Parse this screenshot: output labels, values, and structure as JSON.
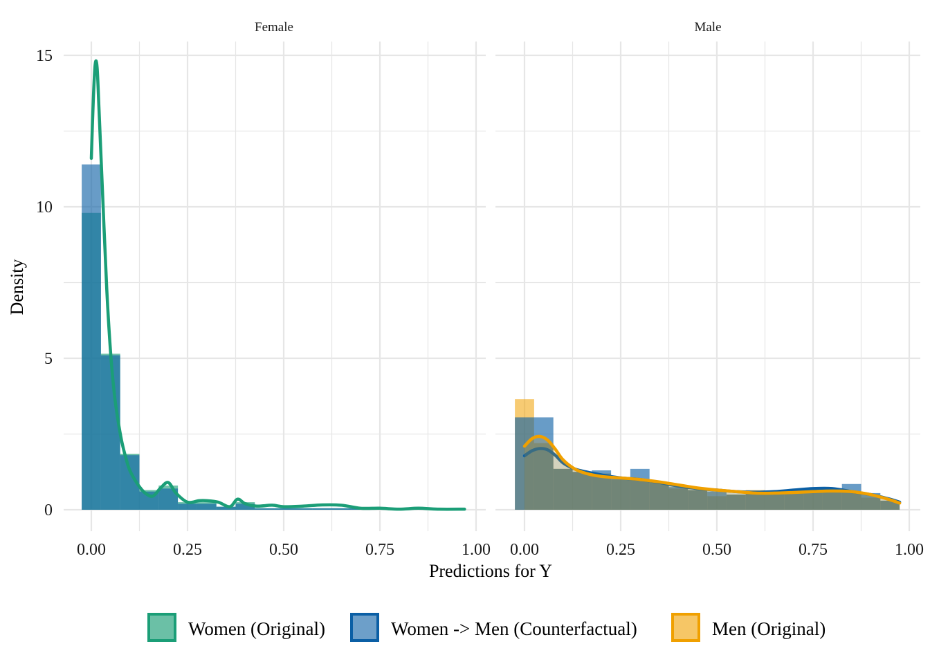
{
  "chart_data": {
    "type": "histogram-density-facets",
    "xlabel": "Predictions for Y",
    "ylabel": "Density",
    "xlim": [
      -0.02,
      1.0
    ],
    "ylim": [
      0,
      15
    ],
    "x_ticks": [
      "0.00",
      "0.25",
      "0.50",
      "0.75",
      "1.00"
    ],
    "x_tick_values": [
      0,
      0.25,
      0.5,
      0.75,
      1.0
    ],
    "y_ticks": [
      "0",
      "5",
      "10",
      "15"
    ],
    "y_tick_values": [
      0,
      5,
      10,
      15
    ],
    "grid": true,
    "legend_position": "bottom",
    "colors": {
      "women_original": "#1b9e77",
      "women_to_men": "#0b5fa5",
      "men_original": "#f0a000",
      "grid": "#e6e6e6"
    },
    "legend": [
      {
        "label": "Women (Original)",
        "color_key": "women_original"
      },
      {
        "label": "Women -> Men (Counterfactual)",
        "color_key": "women_to_men"
      },
      {
        "label": "Men (Original)",
        "color_key": "men_original"
      }
    ],
    "panels": [
      {
        "strip": "Female",
        "histograms": [
          {
            "series": "women_original",
            "binwidth": 0.05,
            "bin_centers": [
              0,
              0.05,
              0.1,
              0.15,
              0.2,
              0.25,
              0.3,
              0.35,
              0.4,
              0.45,
              0.5,
              0.55,
              0.6,
              0.65,
              0.7,
              0.75,
              0.8,
              0.85,
              0.9,
              0.95
            ],
            "values": [
              9.8,
              5.15,
              1.85,
              0.65,
              0.8,
              0.25,
              0.25,
              0.1,
              0.25,
              0.05,
              0.05,
              0.05,
              0.05,
              0.05,
              0.05,
              0.0,
              0.05,
              0.0,
              0.0,
              0.0
            ]
          },
          {
            "series": "women_to_men",
            "binwidth": 0.05,
            "bin_centers": [
              0,
              0.05,
              0.1,
              0.15,
              0.2,
              0.25,
              0.3,
              0.35,
              0.4,
              0.45,
              0.5,
              0.55,
              0.6,
              0.65,
              0.7,
              0.75,
              0.8,
              0.85,
              0.9,
              0.95
            ],
            "values": [
              11.4,
              5.1,
              1.8,
              0.6,
              0.7,
              0.2,
              0.2,
              0.1,
              0.2,
              0.05,
              0.05,
              0.05,
              0.05,
              0.05,
              0.05,
              0.0,
              0.05,
              0.0,
              0.0,
              0.0
            ]
          }
        ],
        "densities": [
          {
            "series": "women_original",
            "x": [
              0.0,
              0.005,
              0.01,
              0.015,
              0.02,
              0.03,
              0.04,
              0.05,
              0.06,
              0.07,
              0.08,
              0.09,
              0.1,
              0.12,
              0.14,
              0.16,
              0.18,
              0.2,
              0.22,
              0.25,
              0.28,
              0.3,
              0.33,
              0.36,
              0.38,
              0.4,
              0.43,
              0.47,
              0.5,
              0.55,
              0.6,
              0.65,
              0.7,
              0.75,
              0.8,
              0.85,
              0.9,
              0.97
            ],
            "y": [
              11.6,
              13.5,
              14.7,
              14.6,
              13.2,
              10.2,
              7.3,
              5.2,
              3.8,
              2.9,
              2.2,
              1.7,
              1.3,
              0.85,
              0.55,
              0.45,
              0.72,
              0.9,
              0.55,
              0.25,
              0.3,
              0.3,
              0.25,
              0.1,
              0.35,
              0.2,
              0.12,
              0.15,
              0.1,
              0.12,
              0.16,
              0.15,
              0.05,
              0.05,
              0.02,
              0.05,
              0.02,
              0.02
            ]
          }
        ]
      },
      {
        "strip": "Male",
        "histograms": [
          {
            "series": "men_original",
            "binwidth": 0.05,
            "bin_centers": [
              0,
              0.05,
              0.1,
              0.15,
              0.2,
              0.25,
              0.3,
              0.35,
              0.4,
              0.45,
              0.5,
              0.55,
              0.6,
              0.65,
              0.7,
              0.75,
              0.8,
              0.85,
              0.9,
              0.95
            ],
            "values": [
              3.65,
              2.2,
              1.35,
              1.25,
              1.2,
              1.0,
              1.0,
              0.9,
              0.7,
              0.65,
              0.45,
              0.5,
              0.65,
              0.55,
              0.55,
              0.6,
              0.6,
              0.6,
              0.4,
              0.3
            ]
          },
          {
            "series": "women_to_men",
            "binwidth": 0.05,
            "bin_centers": [
              0,
              0.05,
              0.1,
              0.15,
              0.2,
              0.25,
              0.3,
              0.35,
              0.4,
              0.45,
              0.5,
              0.55,
              0.6,
              0.65,
              0.7,
              0.75,
              0.8,
              0.85,
              0.9,
              0.95
            ],
            "values": [
              3.05,
              3.05,
              1.35,
              1.25,
              1.3,
              1.05,
              1.35,
              0.9,
              0.75,
              0.65,
              0.6,
              0.5,
              0.55,
              0.55,
              0.6,
              0.65,
              0.65,
              0.85,
              0.55,
              0.3
            ]
          }
        ],
        "densities": [
          {
            "series": "women_to_men",
            "x": [
              0.0,
              0.02,
              0.04,
              0.06,
              0.08,
              0.1,
              0.13,
              0.16,
              0.2,
              0.25,
              0.3,
              0.35,
              0.4,
              0.45,
              0.5,
              0.55,
              0.6,
              0.65,
              0.7,
              0.75,
              0.8,
              0.85,
              0.9,
              0.95,
              0.975
            ],
            "y": [
              1.78,
              1.95,
              2.02,
              1.98,
              1.8,
              1.55,
              1.35,
              1.25,
              1.15,
              1.05,
              1.0,
              0.9,
              0.78,
              0.7,
              0.65,
              0.6,
              0.58,
              0.6,
              0.65,
              0.7,
              0.7,
              0.6,
              0.5,
              0.35,
              0.25
            ]
          },
          {
            "series": "men_original",
            "x": [
              0.0,
              0.02,
              0.04,
              0.06,
              0.08,
              0.1,
              0.13,
              0.16,
              0.2,
              0.25,
              0.3,
              0.35,
              0.4,
              0.45,
              0.5,
              0.55,
              0.6,
              0.65,
              0.7,
              0.75,
              0.8,
              0.85,
              0.9,
              0.95,
              0.975
            ],
            "y": [
              2.1,
              2.35,
              2.42,
              2.3,
              2.0,
              1.65,
              1.35,
              1.2,
              1.1,
              1.05,
              1.0,
              0.92,
              0.82,
              0.72,
              0.65,
              0.6,
              0.55,
              0.55,
              0.57,
              0.6,
              0.62,
              0.6,
              0.5,
              0.33,
              0.22
            ]
          }
        ]
      }
    ]
  }
}
